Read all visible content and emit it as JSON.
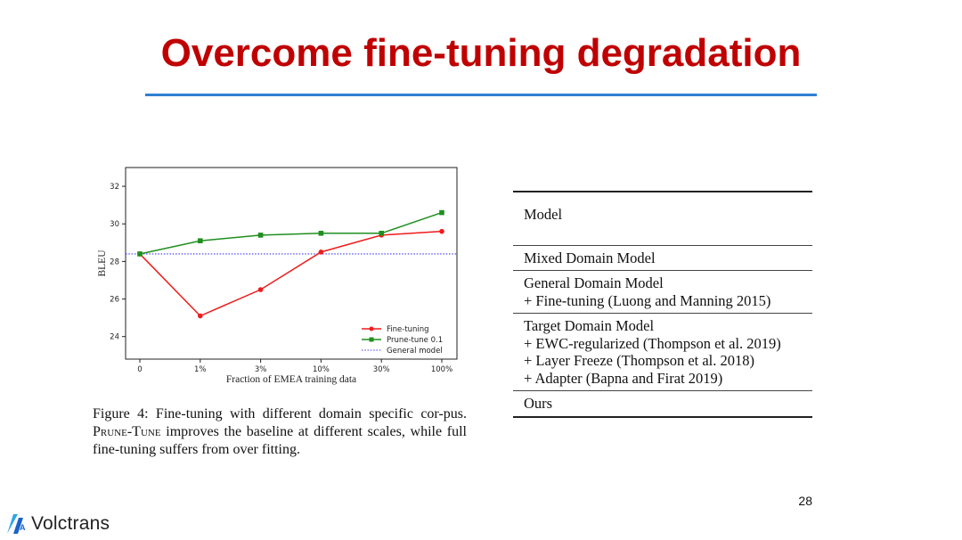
{
  "slide": {
    "title": "Overcome fine-tuning degradation",
    "page_number": "28",
    "logo_text": "Volctrans",
    "accent_color": "#c00000",
    "rule_color": "#2f7fd1"
  },
  "chart_data": {
    "type": "line",
    "xlabel": "Fraction of EMEA training data",
    "ylabel": "BLEU",
    "categories": [
      "0",
      "1%",
      "3%",
      "10%",
      "30%",
      "100%"
    ],
    "ylim": [
      22.8,
      33.0
    ],
    "yticks": [
      "24",
      "26",
      "28",
      "30",
      "32"
    ],
    "legend_position": "lower-right",
    "grid": false,
    "series": [
      {
        "name": "Fine-tuning",
        "values": [
          28.4,
          25.1,
          26.5,
          28.5,
          29.4,
          29.6
        ],
        "color": "#ee1c1c",
        "marker": "circle"
      },
      {
        "name": "Prune-tune 0.1",
        "values": [
          28.4,
          29.1,
          29.4,
          29.5,
          29.5,
          30.6
        ],
        "color": "#1f8f1f",
        "marker": "square"
      }
    ],
    "reference_line": {
      "name": "General model",
      "value": 28.4,
      "color": "#3a3aff",
      "style": "dotted"
    }
  },
  "caption": {
    "prefix": "Figure 4: Fine-tuning with different domain specific cor-pus. ",
    "method_name": "Prune-Tune",
    "suffix": " improves the baseline at different scales, while full fine-tuning suffers from over fitting."
  },
  "table": {
    "header": "Model",
    "groups": [
      [
        "Mixed Domain Model"
      ],
      [
        "General Domain Model",
        "+ Fine-tuning (Luong and Manning 2015)"
      ],
      [
        "Target Domain Model",
        "+ EWC-regularized (Thompson et al. 2019)",
        "+ Layer Freeze (Thompson et al. 2018)",
        "+ Adapter (Bapna and Firat 2019)"
      ],
      [
        "Ours"
      ]
    ]
  }
}
